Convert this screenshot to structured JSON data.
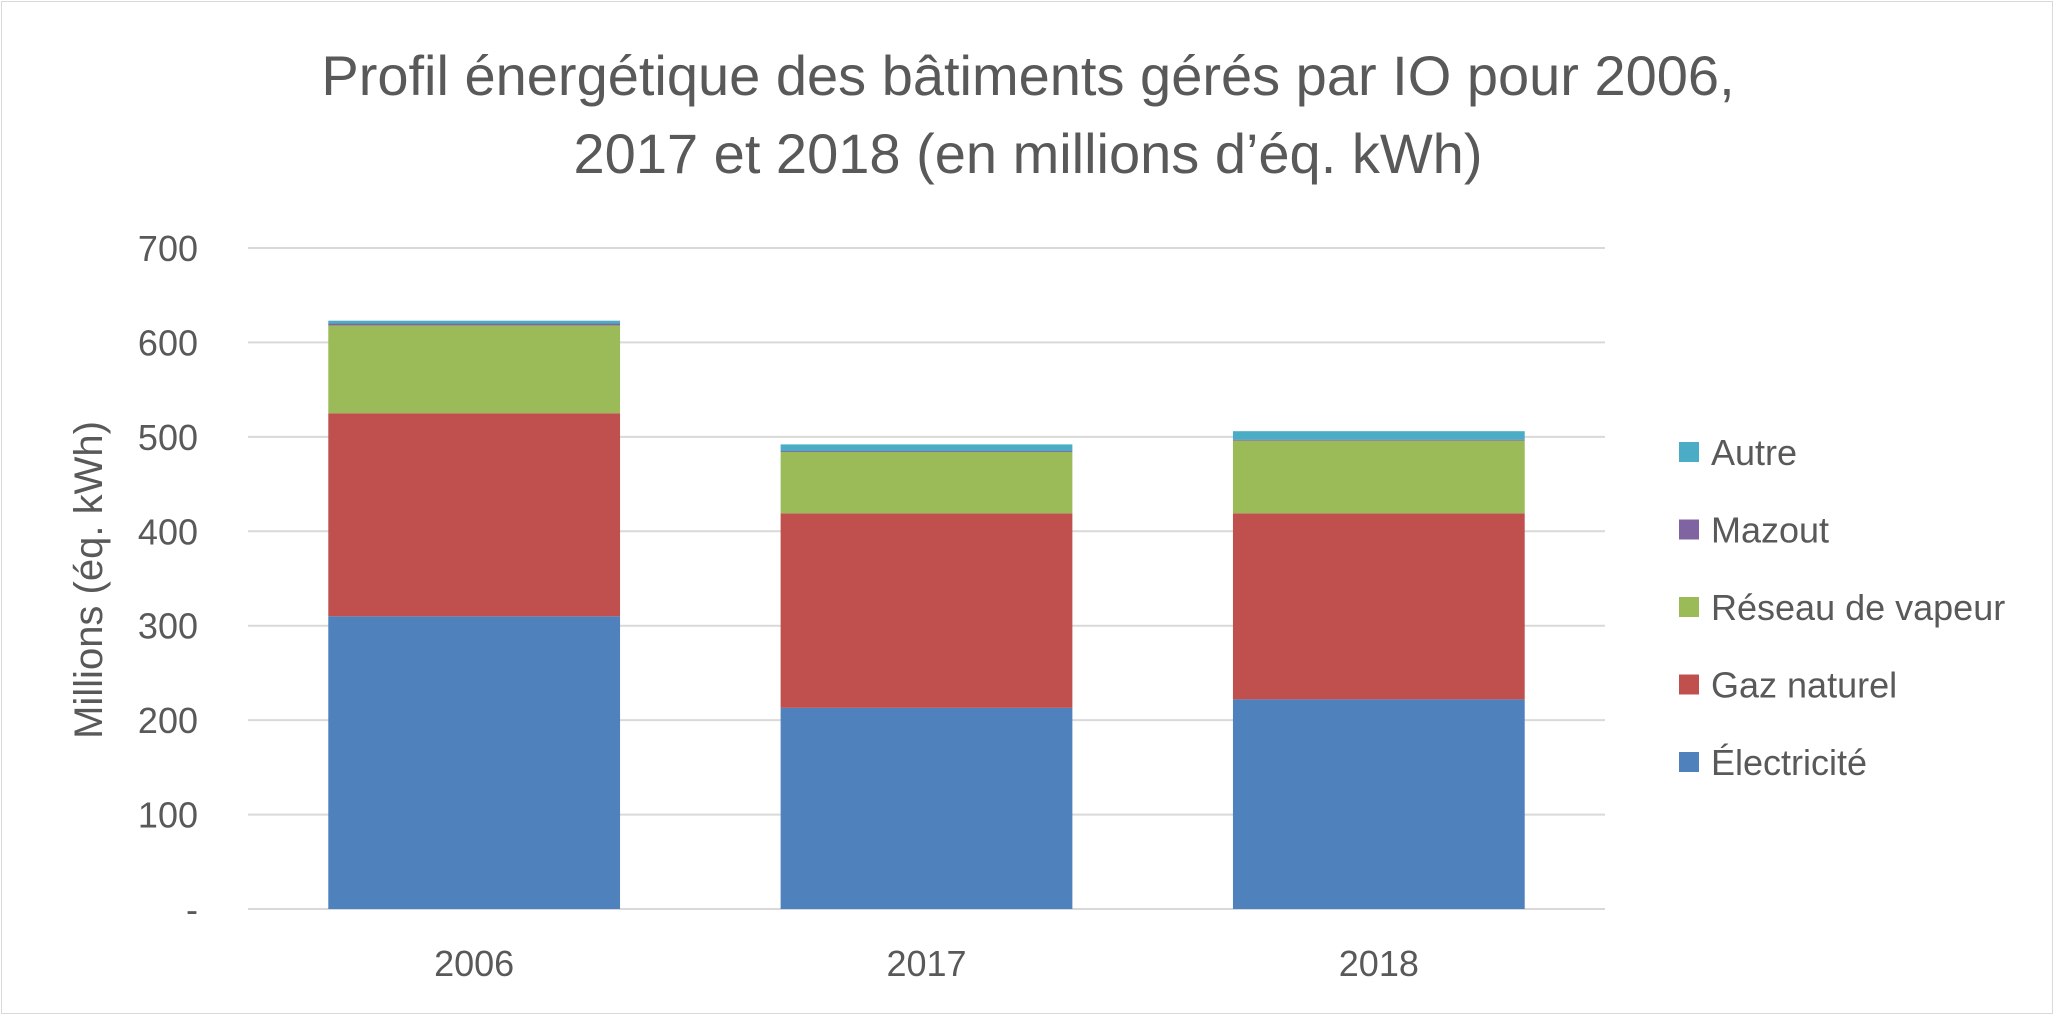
{
  "chart_data": {
    "type": "bar",
    "stacked": true,
    "title": [
      "Profil énergétique des bâtiments gérés par IO pour 2006,",
      "2017 et 2018 (en millions d’éq. kWh)"
    ],
    "xlabel": "",
    "ylabel": "Millions (éq. kWh)",
    "ylim": [
      0,
      700
    ],
    "yticks": [
      {
        "value": 0,
        "label": "-"
      },
      {
        "value": 100,
        "label": "100"
      },
      {
        "value": 200,
        "label": "200"
      },
      {
        "value": 300,
        "label": "300"
      },
      {
        "value": 400,
        "label": "400"
      },
      {
        "value": 500,
        "label": "500"
      },
      {
        "value": 600,
        "label": "600"
      },
      {
        "value": 700,
        "label": "700"
      }
    ],
    "grid": true,
    "legend_position": "right",
    "categories": [
      "2006",
      "2017",
      "2018"
    ],
    "series": [
      {
        "name": "Électricité",
        "color": "#4f81bd",
        "values": [
          310,
          213,
          222
        ]
      },
      {
        "name": "Gaz naturel",
        "color": "#c0504d",
        "values": [
          215,
          206,
          197
        ]
      },
      {
        "name": "Réseau de vapeur",
        "color": "#9bbb59",
        "values": [
          93,
          65,
          77
        ]
      },
      {
        "name": "Mazout",
        "color": "#8064a2",
        "values": [
          2,
          1,
          1
        ]
      },
      {
        "name": "Autre",
        "color": "#4bacc6",
        "values": [
          3,
          7,
          9
        ]
      }
    ]
  }
}
